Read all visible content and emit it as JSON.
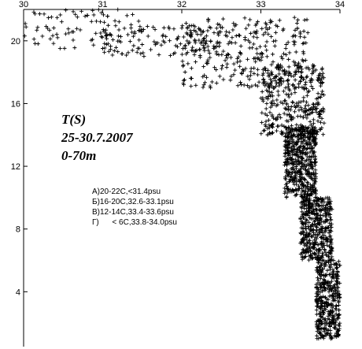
{
  "chart_data": {
    "type": "scatter",
    "title_lines": [
      "T(S)",
      "25-30.7.2007",
      "0-70m"
    ],
    "xlabel": "",
    "ylabel": "",
    "xlim": [
      30,
      34
    ],
    "ylim": [
      0.5,
      22
    ],
    "x_ticks": [
      30,
      31,
      32,
      33,
      34
    ],
    "y_ticks": [
      4,
      8,
      12,
      16,
      20
    ],
    "marker": "plus",
    "legend_entries": [
      "А)20-22С,<31.4psu",
      "Б)16-20С,32.6-33.1psu",
      "В)12-14С,33.4-33.6psu",
      "Г)      < 6С,33.8-34.0psu"
    ],
    "clusters": [
      {
        "x_range": [
          30.0,
          31.5
        ],
        "y_range": [
          19.5,
          22.0
        ],
        "approx_points": 90
      },
      {
        "x_range": [
          31.0,
          32.6
        ],
        "y_range": [
          19.0,
          21.0
        ],
        "approx_points": 120
      },
      {
        "x_range": [
          32.0,
          33.6
        ],
        "y_range": [
          17.0,
          21.5
        ],
        "approx_points": 300
      },
      {
        "x_range": [
          33.0,
          33.8
        ],
        "y_range": [
          14.0,
          18.5
        ],
        "approx_points": 350
      },
      {
        "x_range": [
          33.3,
          33.7
        ],
        "y_range": [
          10.0,
          14.5
        ],
        "approx_points": 500
      },
      {
        "x_range": [
          33.5,
          33.9
        ],
        "y_range": [
          6.0,
          10.0
        ],
        "approx_points": 450
      },
      {
        "x_range": [
          33.7,
          34.0
        ],
        "y_range": [
          1.0,
          6.0
        ],
        "approx_points": 400
      }
    ]
  }
}
